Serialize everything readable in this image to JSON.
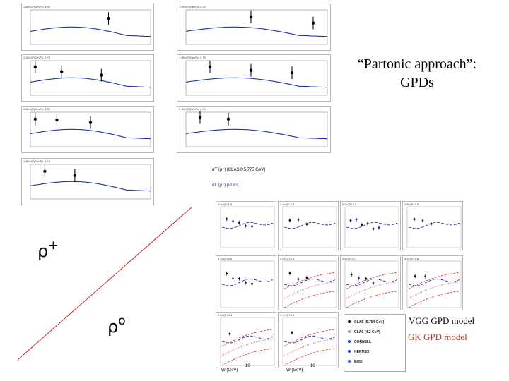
{
  "slide": {
    "title_line1": "“Partonic  approach”:",
    "title_line2": "GPDs",
    "rho_plus_symbol": "ρ",
    "rho_plus_sup": "+",
    "rho_zero_symbol": "ρ",
    "rho_zero_sup": "o",
    "vgg_label": "VGG GPD model",
    "gk_label": "GK GPD model",
    "colors": {
      "vgg": "#000000",
      "gk": "#c0392b",
      "diagonal": "#cc2222",
      "curve": "#2233aa"
    }
  },
  "rho_plus_panels": [
    {
      "header": "1.60<Q²(GeV²)< 1.90"
    },
    {
      "header": "1.90<Q²(GeV²)< 2.20"
    },
    {
      "header": "1.20<Q²(GeV²)< 2.75"
    },
    {
      "header": "1.95<Q²(GeV²)< 3.70"
    },
    {
      "header": "2.00<Q²(GeV²)< 3.50"
    },
    {
      "header": "2.30<Q²(GeV²)< 4.00"
    },
    {
      "header": "1.80<Q²(GeV²)< 5.10"
    }
  ],
  "rho_plus_legend": {
    "line1": "σT (ρ⁺) [CLAS@5.775 GeV]",
    "line2": "σL (ρ⁺) [VGG]"
  },
  "rho_zero_panels": [
    {
      "header": "1.5<Q²<1.9"
    },
    {
      "header": "1.9<Q²<2.3"
    },
    {
      "header": "2.0<Q²<2.8"
    },
    {
      "header": "2.8<Q²<3.8"
    },
    {
      "header": "1.3<Q²<2.0"
    },
    {
      "header": "2.0<Q²<2.6"
    },
    {
      "header": "2.6<Q²<3.3"
    },
    {
      "header": "3.3<Q²<4.6"
    },
    {
      "header": "2.6<Q²<4.1"
    },
    {
      "header": "4.1<Q²<5.6"
    }
  ],
  "rho_zero_legend": [
    {
      "label": "CLAS (5.754 GeV)",
      "color": "#000000"
    },
    {
      "label": "CLAS (4.2 GeV)",
      "color": "#999999"
    },
    {
      "label": "CORNELL",
      "color": "#2244aa"
    },
    {
      "label": "HERMES",
      "color": "#2244cc"
    },
    {
      "label": "E665",
      "color": "#3355bb"
    }
  ],
  "rho_zero_axis": {
    "xlabel": "W (GeV)",
    "xtick": "10",
    "ylabel_top": "σL(γ*p→ρ⁰p) (μb)",
    "ylabel_mid": "σL(γ*p→ρ⁰p) (μb)",
    "ylabel_bot": "σL(γ*p→ρ⁰p) (μb)",
    "ytick_top": "10⁻¹",
    "ytick_bot": "10⁻²"
  }
}
